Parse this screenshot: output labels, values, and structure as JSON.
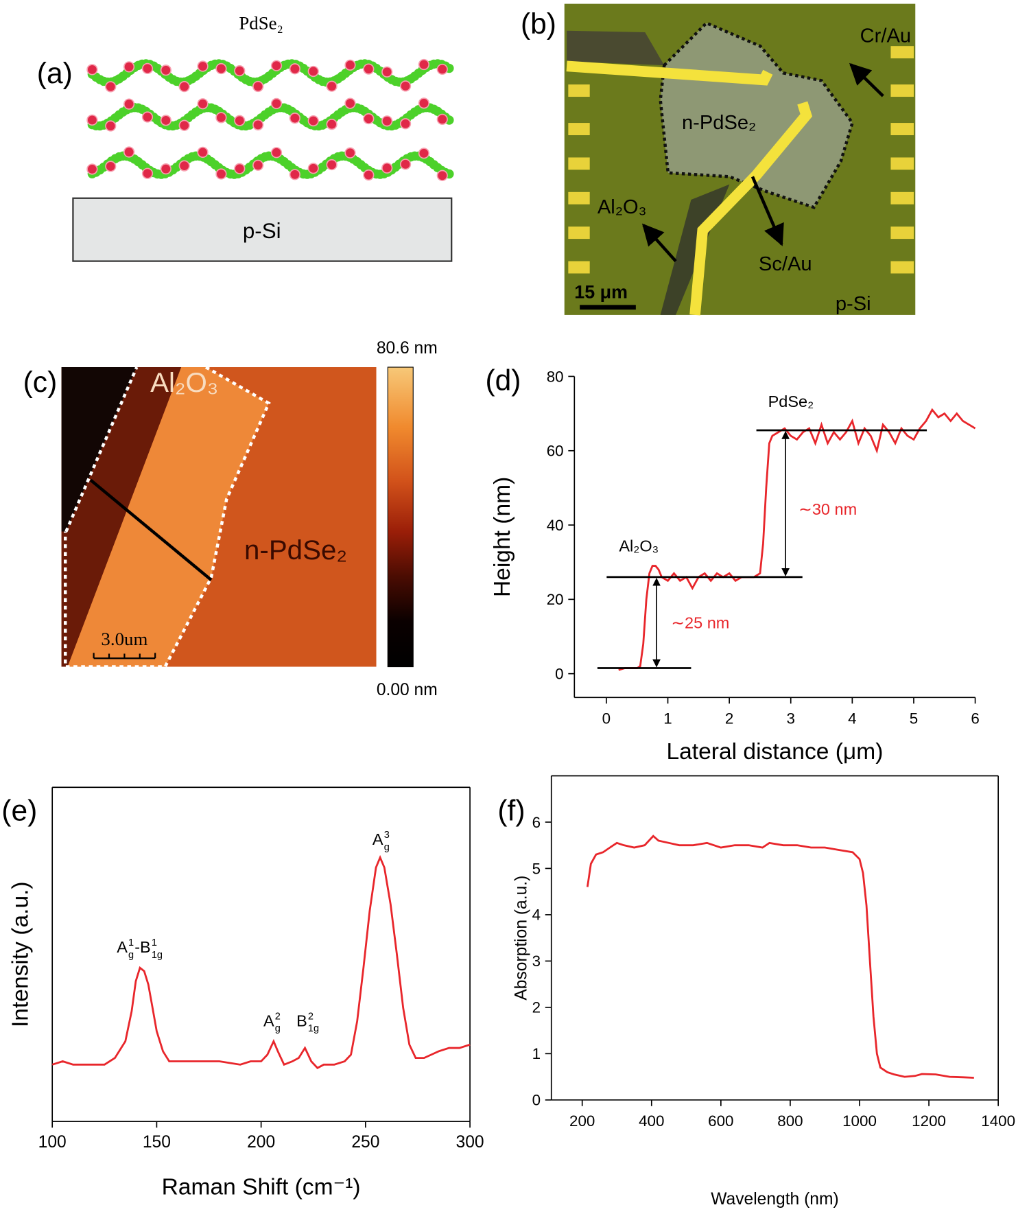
{
  "panels": {
    "a": {
      "label": "(a)",
      "title": "PdSe₂",
      "substrate": "p-Si"
    },
    "b": {
      "label": "(b)",
      "cr_au": "Cr/Au",
      "flake": "n-PdSe₂",
      "oxide": "Al₂O₃",
      "sc_au": "Sc/Au",
      "scale_bar": "15 μm",
      "substrate": "p-Si"
    },
    "c": {
      "label": "(c)",
      "oxide": "Al₂O₃",
      "flake": "n-PdSe₂",
      "scale_bar": "3.0um",
      "colorbar_max": "80.6 nm",
      "colorbar_min": "0.00 nm"
    }
  },
  "chart_data": [
    {
      "type": "line",
      "panel_label": "(d)",
      "x_label": "Lateral distance (μm)",
      "y_label": "Height (nm)",
      "x": [
        0.2,
        0.3,
        0.4,
        0.5,
        0.55,
        0.6,
        0.65,
        0.7,
        0.75,
        0.8,
        0.85,
        0.9,
        1.0,
        1.1,
        1.2,
        1.3,
        1.4,
        1.5,
        1.6,
        1.7,
        1.8,
        1.9,
        2.0,
        2.1,
        2.2,
        2.3,
        2.4,
        2.5,
        2.55,
        2.6,
        2.65,
        2.7,
        2.8,
        2.9,
        3.0,
        3.1,
        3.2,
        3.3,
        3.4,
        3.5,
        3.6,
        3.7,
        3.8,
        3.9,
        4.0,
        4.1,
        4.2,
        4.3,
        4.4,
        4.5,
        4.6,
        4.7,
        4.8,
        4.9,
        5.0,
        5.1,
        5.2,
        5.3,
        5.4,
        5.5,
        5.6,
        5.7,
        5.8,
        5.9,
        6.0
      ],
      "values": [
        1,
        1.5,
        1.5,
        1.5,
        2,
        8,
        20,
        27,
        29,
        29,
        28,
        26,
        25,
        27,
        25,
        26,
        23,
        26,
        27,
        25,
        27,
        26,
        27,
        25,
        26,
        26,
        26,
        27,
        35,
        50,
        62,
        64,
        65,
        66,
        64,
        63,
        65,
        66,
        62,
        67,
        62,
        65,
        63,
        65,
        68,
        62,
        66,
        64,
        60,
        67,
        65,
        62,
        66,
        64,
        63,
        66,
        68,
        71,
        69,
        70,
        68,
        70,
        68,
        67,
        66
      ],
      "color": "#e8262b",
      "xlim": [
        -0.52,
        6
      ],
      "xticks": [
        0,
        1,
        2,
        3,
        4,
        5,
        6
      ],
      "ylim": [
        -6.4,
        80
      ],
      "yticks": [
        0,
        20,
        40,
        60,
        80
      ],
      "levels": [
        1.5,
        26,
        65.5
      ],
      "annotations": [
        {
          "text": "PdSe₂",
          "color": "#000000"
        },
        {
          "text": "Al₂O₃",
          "color": "#000000"
        },
        {
          "text": "∼30 nm",
          "color": "#e8262b"
        },
        {
          "text": "∼25 nm",
          "color": "#e8262b"
        }
      ]
    },
    {
      "type": "line",
      "panel_label": "(e)",
      "x_label": "Raman Shift (cm⁻¹)",
      "y_label": "Intensity (a.u.)",
      "x": [
        100,
        105,
        110,
        115,
        120,
        125,
        130,
        135,
        138,
        140,
        142,
        144,
        146,
        148,
        150,
        153,
        156,
        160,
        170,
        180,
        190,
        195,
        200,
        203,
        206,
        208,
        211,
        215,
        218,
        221,
        224,
        227,
        230,
        235,
        240,
        243,
        246,
        249,
        252,
        255,
        257,
        259,
        262,
        265,
        268,
        271,
        274,
        278,
        285,
        290,
        295,
        300
      ],
      "values": [
        17,
        18,
        17,
        17,
        17,
        17,
        19,
        24,
        33,
        42,
        46,
        45,
        41,
        34,
        27,
        21,
        18,
        18,
        18,
        18,
        17,
        18,
        18,
        20,
        24,
        21,
        17,
        18,
        19,
        22,
        18,
        16,
        17,
        17,
        18,
        20,
        30,
        46,
        63,
        76,
        79,
        76,
        65,
        50,
        34,
        23,
        19,
        19,
        21,
        22,
        22,
        23
      ],
      "color": "#e8262b",
      "xlim": [
        100,
        300
      ],
      "xticks": [
        100,
        150,
        200,
        250,
        300
      ],
      "ylim": [
        0,
        100
      ],
      "annotations": [
        {
          "parts": [
            {
              "base": "A",
              "sup": "1",
              "sub": "g"
            },
            {
              "base": "-B",
              "sup": "1",
              "sub": "1g"
            }
          ]
        },
        {
          "parts": [
            {
              "base": "A",
              "sup": "2",
              "sub": "g"
            }
          ]
        },
        {
          "parts": [
            {
              "base": "B",
              "sup": "2",
              "sub": "1g"
            }
          ]
        },
        {
          "parts": [
            {
              "base": "A",
              "sup": "3",
              "sub": "g"
            }
          ]
        }
      ]
    },
    {
      "type": "line",
      "panel_label": "(f)",
      "x_label": "Wavelength (nm)",
      "y_label": "Absorption (a.u.)",
      "x": [
        215,
        225,
        240,
        260,
        280,
        300,
        320,
        350,
        380,
        405,
        420,
        450,
        480,
        520,
        560,
        600,
        640,
        680,
        720,
        740,
        780,
        820,
        860,
        900,
        940,
        980,
        1000,
        1010,
        1020,
        1030,
        1040,
        1050,
        1060,
        1080,
        1100,
        1130,
        1160,
        1180,
        1220,
        1260,
        1300,
        1330
      ],
      "values": [
        4.6,
        5.1,
        5.3,
        5.35,
        5.45,
        5.55,
        5.5,
        5.45,
        5.5,
        5.7,
        5.6,
        5.55,
        5.5,
        5.5,
        5.55,
        5.45,
        5.5,
        5.5,
        5.45,
        5.55,
        5.5,
        5.5,
        5.45,
        5.45,
        5.4,
        5.35,
        5.2,
        4.9,
        4.2,
        3.0,
        1.8,
        1.0,
        0.7,
        0.6,
        0.55,
        0.5,
        0.52,
        0.56,
        0.55,
        0.5,
        0.49,
        0.48
      ],
      "color": "#e8262b",
      "xlim": [
        111,
        1400
      ],
      "xticks": [
        200,
        400,
        600,
        800,
        1000,
        1200,
        1400
      ],
      "ylim": [
        0,
        7
      ],
      "yticks": [
        0,
        1,
        2,
        3,
        4,
        5,
        6
      ]
    }
  ]
}
